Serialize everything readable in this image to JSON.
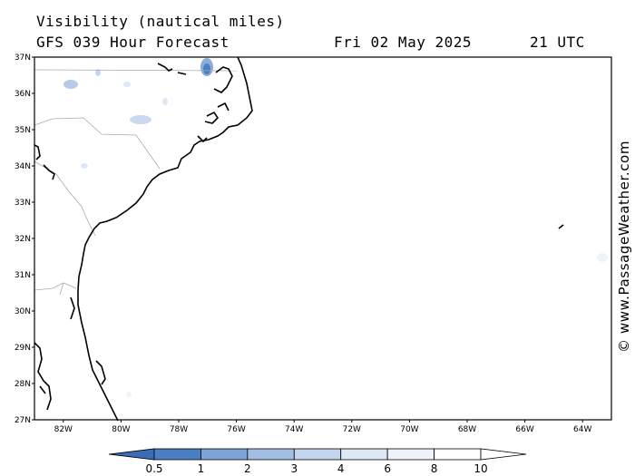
{
  "header": {
    "title": "Visibility (nautical miles)",
    "subtitle": "GFS 039 Hour Forecast",
    "date": "Fri 02 May 2025",
    "time": "21 UTC"
  },
  "copyright": "© www.PassageWeather.com",
  "map": {
    "lat_range": [
      27,
      37
    ],
    "lon_range": [
      -83,
      -63
    ],
    "lat_labels": [
      "27N",
      "28N",
      "29N",
      "30N",
      "31N",
      "32N",
      "33N",
      "34N",
      "35N",
      "36N",
      "37N"
    ],
    "lon_labels": [
      "82W",
      "80W",
      "78W",
      "76W",
      "74W",
      "72W",
      "70W",
      "68W",
      "66W",
      "64W"
    ],
    "coast_color": "#000000",
    "border_color": "#aaaaaa"
  },
  "colorbar": {
    "labels": [
      "0.5",
      "1",
      "2",
      "3",
      "4",
      "6",
      "8",
      "10"
    ],
    "colors": [
      "#3a6db5",
      "#4a7fc4",
      "#7ea3d6",
      "#a3bee3",
      "#c3d5ee",
      "#dde7f5",
      "#eef3fa",
      "#ffffff",
      "#ffffff"
    ]
  }
}
